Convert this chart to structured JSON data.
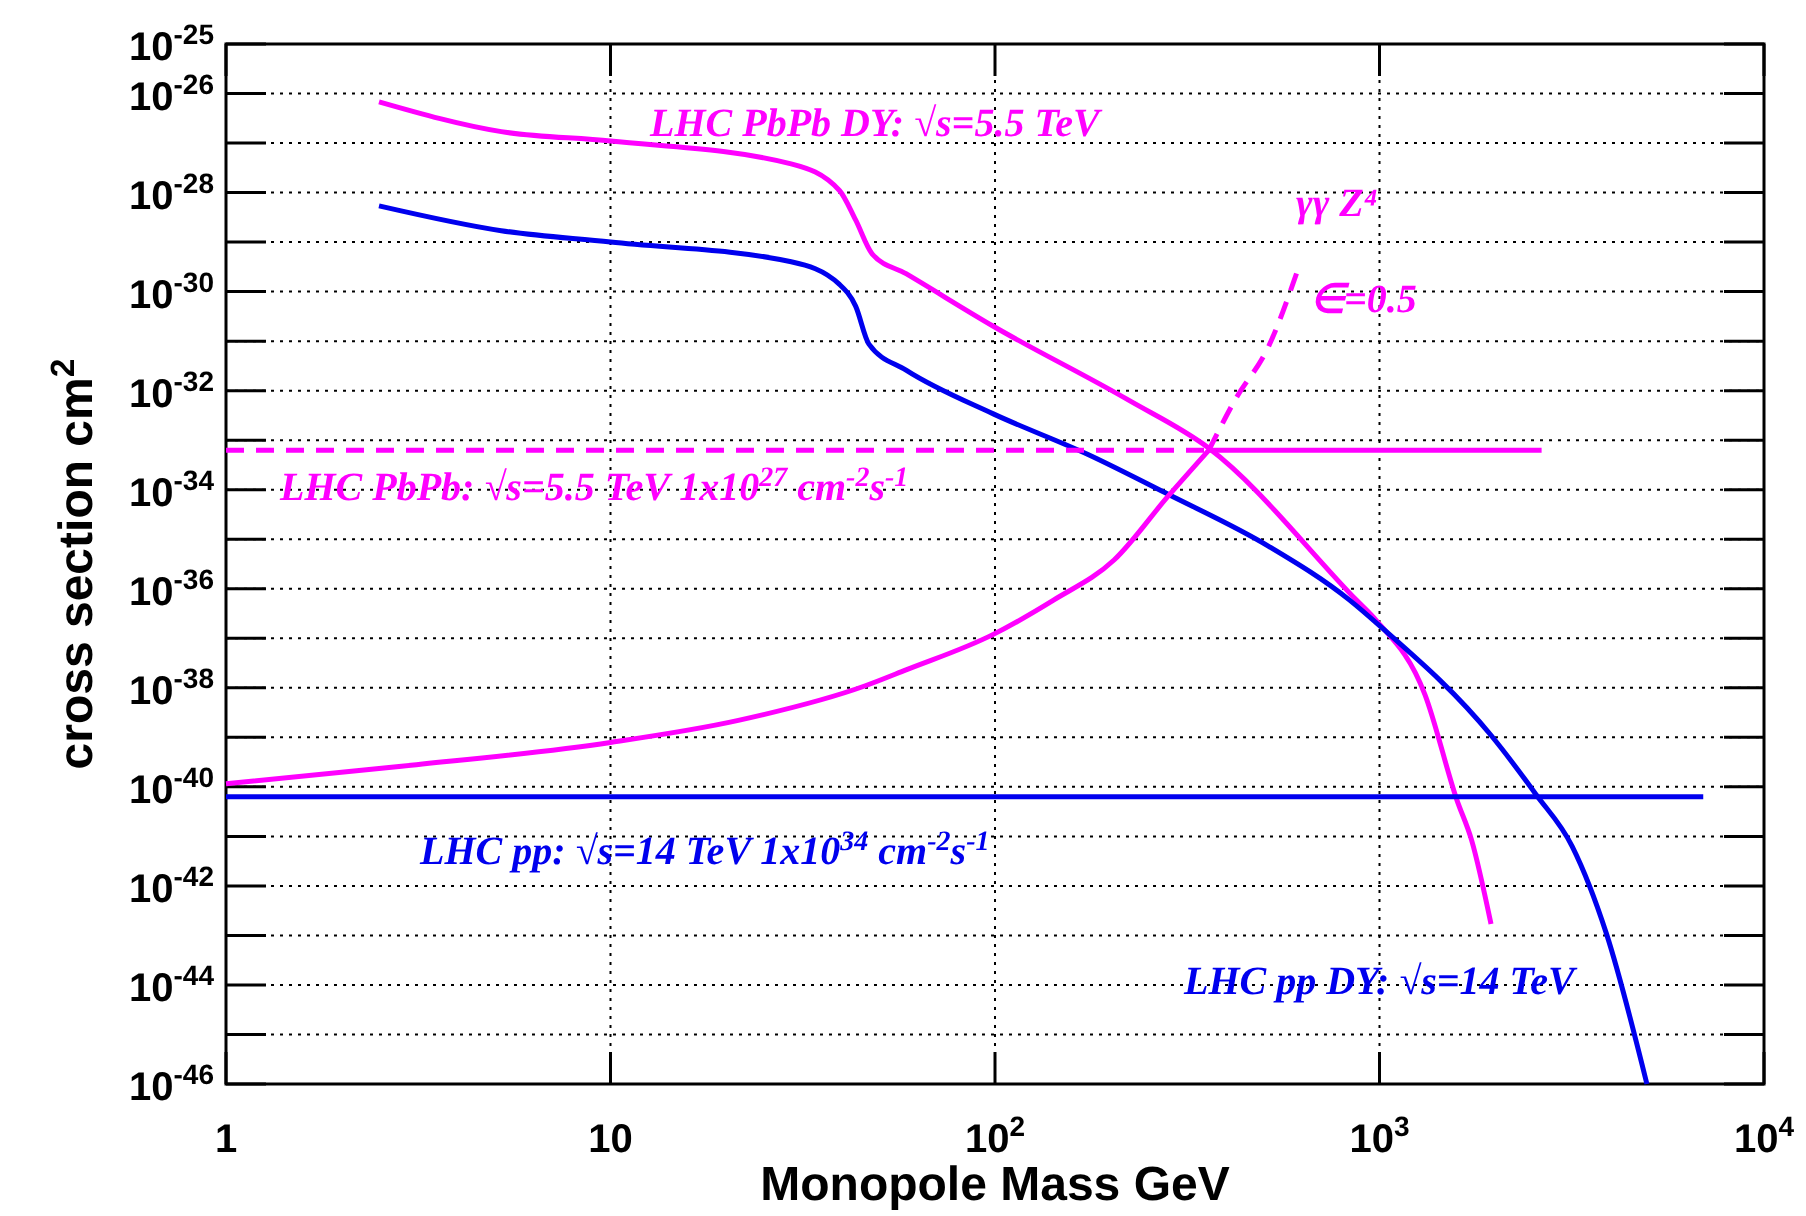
{
  "chart_data": {
    "type": "line",
    "xlabel": "Monopole Mass GeV",
    "ylabel": "cross section cm$^{2}$",
    "log": "xy",
    "grid": true,
    "marker": "none",
    "xlim": [
      1,
      10000
    ],
    "ylim": [
      1e-46,
      1e-25
    ],
    "xticks": [
      1,
      10,
      {
        "value": 100,
        "label": "10$^{2}$"
      },
      {
        "value": 1000,
        "label": "10$^{3}$"
      },
      {
        "value": 10000,
        "label": "10$^{4}$"
      }
    ],
    "yticks": [
      {
        "value": 1e-25,
        "label": "10$^{-25}$"
      },
      {
        "value": 1e-26,
        "label": "10$^{-26}$"
      },
      {
        "value": 1e-27,
        "label": null
      },
      {
        "value": 1e-28,
        "label": "10$^{-28}$"
      },
      {
        "value": 1e-29,
        "label": null
      },
      {
        "value": 1e-30,
        "label": "10$^{-30}$"
      },
      {
        "value": 1e-31,
        "label": null
      },
      {
        "value": 1e-32,
        "label": "10$^{-32}$"
      },
      {
        "value": 1e-33,
        "label": null
      },
      {
        "value": 1e-34,
        "label": "10$^{-34}$"
      },
      {
        "value": 1e-35,
        "label": null
      },
      {
        "value": 1e-36,
        "label": "10$^{-36}$"
      },
      {
        "value": 1e-37,
        "label": null
      },
      {
        "value": 1e-38,
        "label": "10$^{-38}$"
      },
      {
        "value": 1e-39,
        "label": null
      },
      {
        "value": 1e-40,
        "label": "10$^{-40}$"
      },
      {
        "value": 1e-41,
        "label": null
      },
      {
        "value": 1e-42,
        "label": "10$^{-42}$"
      },
      {
        "value": 1e-43,
        "label": null
      },
      {
        "value": 1e-44,
        "label": "10$^{-44}$"
      },
      {
        "value": 1e-45,
        "label": null
      },
      {
        "value": 1e-46,
        "label": "10$^{-46}$"
      }
    ],
    "series": [
      {
        "name": "LHC PbPb DY: √s=5.5 TeV",
        "color": "#ff00ff",
        "x": [
          2.5,
          5.2,
          10,
          29.5,
          39.4,
          43.4,
          47.9,
          58.7,
          99,
          222,
          360,
          871,
          980,
          1312,
          1590,
          1735,
          1950
        ],
        "values": [
          6.8e-27,
          1.7e-27,
          1.1e-27,
          3.8e-28,
          1.1e-28,
          2.8e-29,
          5.8e-30,
          2.3e-30,
          2e-31,
          6.5e-33,
          6.9e-34,
          5.9e-37,
          2.3e-37,
          7.4e-39,
          5.4e-41,
          8.5e-42,
          1.7e-43
        ]
      },
      {
        "name": "LHC pp DY: √s=14 TeV",
        "color": "#0000ee",
        "x": [
          2.5,
          5.2,
          10,
          29.5,
          39.4,
          43.4,
          47,
          58.7,
          99,
          174,
          282,
          515,
          836,
          1000,
          1950,
          2550,
          3170,
          3890,
          4960
        ],
        "values": [
          5.4e-29,
          1.7e-29,
          1e-29,
          4e-30,
          1.4e-30,
          5.1e-31,
          8.7e-32,
          2.6e-32,
          3.4e-33,
          5.2e-34,
          8.1e-35,
          7.2e-36,
          5.9e-37,
          1.8e-37,
          1.1e-39,
          7.1e-41,
          6.3e-42,
          1.1e-43,
          1e-46
        ]
      },
      {
        "color": "#ff00ff",
        "x": [
          1,
          2.86,
          10,
          21.5,
          46,
          58.7,
          99,
          142,
          204,
          282,
          360
        ],
        "values": [
          1.15e-40,
          2.6e-40,
          7.9e-40,
          2.2e-39,
          1.1e-38,
          2.3e-38,
          1.2e-37,
          5.9e-37,
          3.8e-36,
          7.4e-35,
          6.3e-34
        ]
      },
      {
        "color": "#ff00ff",
        "line_style": "dashed",
        "x": [
          360,
          421,
          515,
          618
        ],
        "values": [
          6.3e-34,
          6.5e-33,
          7.9e-32,
          3.3e-30
        ]
      },
      {
        "name": "LHC PbPb: √s=5.5 TeV 1x10$^{27}$ cm$^{-2}$s$^{-1}$",
        "color": "#ff00ff",
        "line_style": "dashed",
        "x": [
          1,
          360
        ],
        "values": [
          6.3e-34,
          6.3e-34
        ]
      },
      {
        "color": "#ff00ff",
        "x": [
          360,
          2640
        ],
        "values": [
          6.3e-34,
          6.3e-34
        ]
      },
      {
        "name": "LHC pp: √s=14 TeV 1x10$^{34}$ cm$^{-2}$s$^{-1}$",
        "color": "#0000ee",
        "x": [
          1,
          6950
        ],
        "values": [
          6.3e-41,
          6.3e-41
        ]
      }
    ],
    "annotations": [
      "γγ Z⁴",
      "∈=0.5"
    ]
  }
}
